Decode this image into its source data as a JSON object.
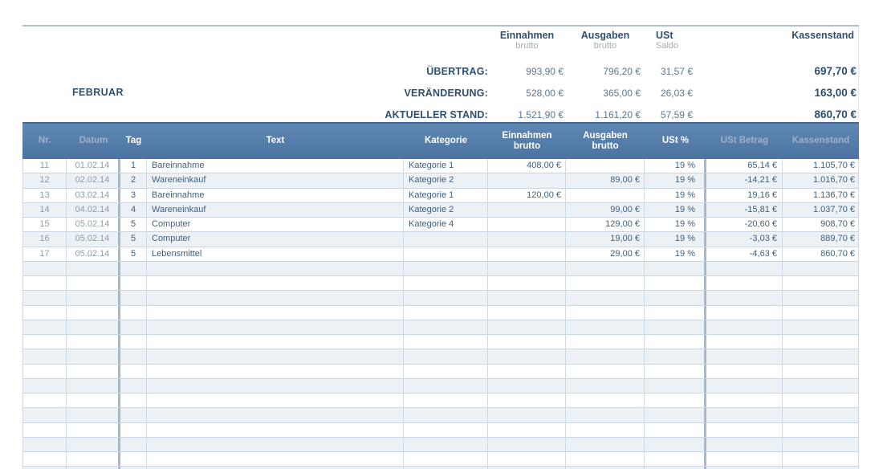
{
  "colors": {
    "header_bar_top": "#5f89b4",
    "header_bar_bottom": "#4c73a1",
    "header_text_muted": "#9cb1c9",
    "row_alt": "#ecf1f6",
    "grid_line": "#c9d6e2",
    "thick_separator": "#a3b9cd",
    "text_dark": "#41607d",
    "text_gray": "#8d9dac",
    "navy_bold": "#2f4f6f"
  },
  "summary": {
    "month_label": "FEBRUAR",
    "columns": [
      {
        "title": "Einnahmen",
        "sub": "brutto"
      },
      {
        "title": "Ausgaben",
        "sub": "brutto"
      },
      {
        "title": "USt",
        "sub": "Saldo"
      },
      {
        "title": "Kassenstand",
        "sub": ""
      }
    ],
    "rows": [
      {
        "label": "ÜBERTRAG:",
        "einnahmen": "993,90 €",
        "ausgaben": "796,20 €",
        "ust": "31,57 €",
        "kassenstand": "697,70 €"
      },
      {
        "label": "VERÄNDERUNG:",
        "einnahmen": "528,00 €",
        "ausgaben": "365,00 €",
        "ust": "26,03 €",
        "kassenstand": "163,00 €"
      },
      {
        "label": "AKTUELLER STAND:",
        "einnahmen": "1.521,90 €",
        "ausgaben": "1.161,20 €",
        "ust": "57,59 €",
        "kassenstand": "860,70 €"
      }
    ]
  },
  "table": {
    "headers": [
      {
        "label": "Nr.",
        "sub": "",
        "muted": true
      },
      {
        "label": "Datum",
        "sub": "",
        "muted": true
      },
      {
        "label": "Tag",
        "sub": "",
        "muted": false
      },
      {
        "label": "Text",
        "sub": "",
        "muted": false
      },
      {
        "label": "Kategorie",
        "sub": "",
        "muted": false
      },
      {
        "label": "Einnahmen",
        "sub": "brutto",
        "muted": false
      },
      {
        "label": "Ausgaben",
        "sub": "brutto",
        "muted": false
      },
      {
        "label": "USt %",
        "sub": "",
        "muted": false
      },
      {
        "label": "USt Betrag",
        "sub": "",
        "muted": true
      },
      {
        "label": "Kassenstand",
        "sub": "",
        "muted": true
      }
    ],
    "rows": [
      [
        "11",
        "01.02.14",
        "1",
        "Bareinnahme",
        "Kategorie 1",
        "408,00 €",
        "",
        "19 %",
        "65,14 €",
        "1.105,70 €"
      ],
      [
        "12",
        "02.02.14",
        "2",
        "Wareneinkauf",
        "Kategorie 2",
        "",
        "89,00 €",
        "19 %",
        "-14,21 €",
        "1.016,70 €"
      ],
      [
        "13",
        "03.02.14",
        "3",
        "Bareinnahme",
        "Kategorie 1",
        "120,00 €",
        "",
        "19 %",
        "19,16 €",
        "1.136,70 €"
      ],
      [
        "14",
        "04.02.14",
        "4",
        "Wareneinkauf",
        "Kategorie 2",
        "",
        "99,00 €",
        "19 %",
        "-15,81 €",
        "1.037,70 €"
      ],
      [
        "15",
        "05.02.14",
        "5",
        "Computer",
        "Kategorie 4",
        "",
        "129,00 €",
        "19 %",
        "-20,60 €",
        "908,70 €"
      ],
      [
        "16",
        "05.02.14",
        "5",
        "Computer",
        "",
        "",
        "19,00 €",
        "19 %",
        "-3,03 €",
        "889,70 €"
      ],
      [
        "17",
        "05.02.14",
        "5",
        "Lebensmittel",
        "",
        "",
        "29,00 €",
        "19 %",
        "-4,63 €",
        "860,70 €"
      ]
    ],
    "empty_row_count": 15
  }
}
